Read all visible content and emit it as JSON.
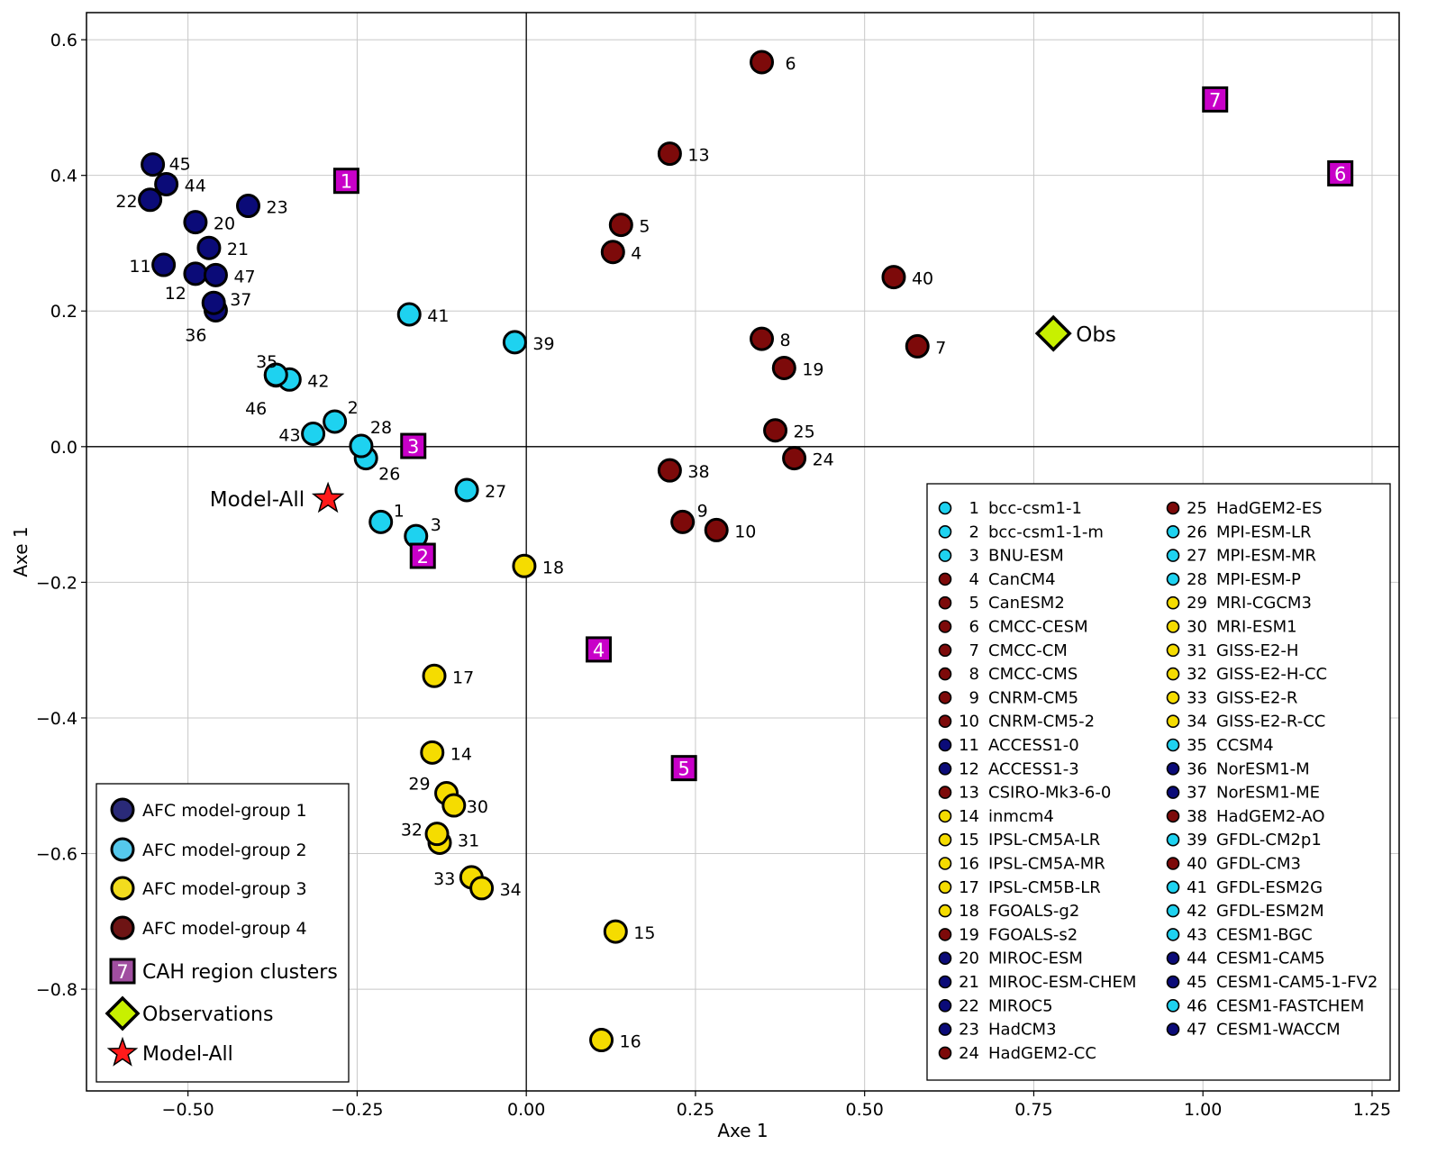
{
  "chart_data": {
    "type": "scatter",
    "xlabel": "Axe 1",
    "ylabel": "Axe 1",
    "xlim": [
      -0.65,
      1.29
    ],
    "ylim": [
      -0.95,
      0.64
    ],
    "xticks": [
      -0.5,
      -0.25,
      0.0,
      0.25,
      0.5,
      0.75,
      1.0,
      1.25
    ],
    "xtick_labels": [
      "−0.50",
      "−0.25",
      "0.00",
      "0.25",
      "0.50",
      "0.75",
      "1.00",
      "1.25"
    ],
    "yticks": [
      0.6,
      0.4,
      0.2,
      0.0,
      -0.2,
      -0.4,
      -0.6,
      -0.8
    ],
    "ytick_labels": [
      "0.6",
      "0.4",
      "0.2",
      "0.0",
      "−0.2",
      "−0.4",
      "−0.6",
      "−0.8"
    ],
    "grid": true,
    "zero_lines": true,
    "group_colors": {
      "1": "#0b0b78",
      "2": "#1ed2f0",
      "3": "#f5dc00",
      "4": "#7d0a0a"
    },
    "legend_group_colors": {
      "1": "#2a2a78",
      "2": "#55c8ec",
      "3": "#f2dc1e",
      "4": "#6e1414"
    },
    "cluster_color": "#c800c8",
    "cluster_legend_color": "#a04ea0",
    "obs_color": "#c8f000",
    "star_color": "#ff1a1a",
    "models": [
      {
        "id": 1,
        "name": "bcc-csm1-1",
        "group": 2,
        "x": -0.215,
        "y": -0.111
      },
      {
        "id": 2,
        "name": "bcc-csm1-1-m",
        "group": 2,
        "x": -0.283,
        "y": 0.037
      },
      {
        "id": 3,
        "name": "BNU-ESM",
        "group": 2,
        "x": -0.163,
        "y": -0.132
      },
      {
        "id": 4,
        "name": "CanCM4",
        "group": 4,
        "x": 0.128,
        "y": 0.287
      },
      {
        "id": 5,
        "name": "CanESM2",
        "group": 4,
        "x": 0.14,
        "y": 0.327
      },
      {
        "id": 6,
        "name": "CMCC-CESM",
        "group": 4,
        "x": 0.348,
        "y": 0.567
      },
      {
        "id": 7,
        "name": "CMCC-CM",
        "group": 4,
        "x": 0.578,
        "y": 0.148
      },
      {
        "id": 8,
        "name": "CMCC-CMS",
        "group": 4,
        "x": 0.348,
        "y": 0.159
      },
      {
        "id": 9,
        "name": "CNRM-CM5",
        "group": 4,
        "x": 0.231,
        "y": -0.111
      },
      {
        "id": 10,
        "name": "CNRM-CM5-2",
        "group": 4,
        "x": 0.281,
        "y": -0.123
      },
      {
        "id": 11,
        "name": "ACCESS1-0",
        "group": 1,
        "x": -0.536,
        "y": 0.268
      },
      {
        "id": 12,
        "name": "ACCESS1-3",
        "group": 1,
        "x": -0.489,
        "y": 0.255
      },
      {
        "id": 13,
        "name": "CSIRO-Mk3-6-0",
        "group": 4,
        "x": 0.212,
        "y": 0.432
      },
      {
        "id": 14,
        "name": "inmcm4",
        "group": 3,
        "x": -0.139,
        "y": -0.451
      },
      {
        "id": 15,
        "name": "IPSL-CM5A-LR",
        "group": 3,
        "x": 0.132,
        "y": -0.715
      },
      {
        "id": 16,
        "name": "IPSL-CM5A-MR",
        "group": 3,
        "x": 0.111,
        "y": -0.875
      },
      {
        "id": 17,
        "name": "IPSL-CM5B-LR",
        "group": 3,
        "x": -0.136,
        "y": -0.338
      },
      {
        "id": 18,
        "name": "FGOALS-g2",
        "group": 3,
        "x": -0.003,
        "y": -0.176
      },
      {
        "id": 19,
        "name": "FGOALS-s2",
        "group": 4,
        "x": 0.381,
        "y": 0.116
      },
      {
        "id": 20,
        "name": "MIROC-ESM",
        "group": 1,
        "x": -0.489,
        "y": 0.331
      },
      {
        "id": 21,
        "name": "MIROC-ESM-CHEM",
        "group": 1,
        "x": -0.469,
        "y": 0.293
      },
      {
        "id": 22,
        "name": "MIROC5",
        "group": 1,
        "x": -0.556,
        "y": 0.364
      },
      {
        "id": 23,
        "name": "HadCM3",
        "group": 1,
        "x": -0.411,
        "y": 0.355
      },
      {
        "id": 24,
        "name": "HadGEM2-CC",
        "group": 4,
        "x": 0.396,
        "y": -0.017
      },
      {
        "id": 25,
        "name": "HadGEM2-ES",
        "group": 4,
        "x": 0.368,
        "y": 0.024
      },
      {
        "id": 26,
        "name": "MPI-ESM-LR",
        "group": 2,
        "x": -0.237,
        "y": -0.017
      },
      {
        "id": 27,
        "name": "MPI-ESM-MR",
        "group": 2,
        "x": -0.088,
        "y": -0.064
      },
      {
        "id": 28,
        "name": "MPI-ESM-P",
        "group": 2,
        "x": -0.244,
        "y": 0.001
      },
      {
        "id": 29,
        "name": "MRI-CGCM3",
        "group": 3,
        "x": -0.118,
        "y": -0.511
      },
      {
        "id": 30,
        "name": "MRI-ESM1",
        "group": 3,
        "x": -0.107,
        "y": -0.529
      },
      {
        "id": 31,
        "name": "GISS-E2-H",
        "group": 3,
        "x": -0.128,
        "y": -0.584
      },
      {
        "id": 32,
        "name": "GISS-E2-H-CC",
        "group": 3,
        "x": -0.132,
        "y": -0.571
      },
      {
        "id": 33,
        "name": "GISS-E2-R",
        "group": 3,
        "x": -0.081,
        "y": -0.635
      },
      {
        "id": 34,
        "name": "GISS-E2-R-CC",
        "group": 3,
        "x": -0.066,
        "y": -0.651
      },
      {
        "id": 35,
        "name": "CCSM4",
        "group": 2,
        "x": -0.37,
        "y": 0.105
      },
      {
        "id": 36,
        "name": "NorESM1-M",
        "group": 1,
        "x": -0.459,
        "y": 0.201
      },
      {
        "id": 37,
        "name": "NorESM1-ME",
        "group": 1,
        "x": -0.462,
        "y": 0.212
      },
      {
        "id": 38,
        "name": "HadGEM2-AO",
        "group": 4,
        "x": 0.212,
        "y": -0.035
      },
      {
        "id": 39,
        "name": "GFDL-CM2p1",
        "group": 2,
        "x": -0.017,
        "y": 0.154
      },
      {
        "id": 40,
        "name": "GFDL-CM3",
        "group": 4,
        "x": 0.543,
        "y": 0.25
      },
      {
        "id": 41,
        "name": "GFDL-ESM2G",
        "group": 2,
        "x": -0.173,
        "y": 0.195
      },
      {
        "id": 42,
        "name": "GFDL-ESM2M",
        "group": 2,
        "x": -0.35,
        "y": 0.099
      },
      {
        "id": 43,
        "name": "CESM1-BGC",
        "group": 2,
        "x": -0.315,
        "y": 0.019
      },
      {
        "id": 44,
        "name": "CESM1-CAM5",
        "group": 1,
        "x": -0.532,
        "y": 0.387
      },
      {
        "id": 45,
        "name": "CESM1-CAM5-1-FV2",
        "group": 1,
        "x": -0.552,
        "y": 0.416
      },
      {
        "id": 46,
        "name": "CESM1-FASTCHEM",
        "group": 2,
        "x": -0.37,
        "y": 0.106
      },
      {
        "id": 47,
        "name": "CESM1-WACCM",
        "group": 1,
        "x": -0.459,
        "y": 0.253
      }
    ],
    "clusters": [
      {
        "label": "1",
        "x": -0.266,
        "y": 0.392
      },
      {
        "label": "2",
        "x": -0.153,
        "y": -0.161
      },
      {
        "label": "3",
        "x": -0.167,
        "y": 0.001
      },
      {
        "label": "4",
        "x": 0.107,
        "y": -0.299
      },
      {
        "label": "5",
        "x": 0.233,
        "y": -0.474
      },
      {
        "label": "6",
        "x": 1.203,
        "y": 0.403
      },
      {
        "label": "7",
        "x": 1.018,
        "y": 0.512
      }
    ],
    "observations": {
      "label": "Obs",
      "x": 0.779,
      "y": 0.167
    },
    "model_all": {
      "label": "Model-All",
      "x": -0.293,
      "y": -0.077
    },
    "legend_main": [
      {
        "kind": "circle",
        "group": 1,
        "label": "AFC model-group 1"
      },
      {
        "kind": "circle",
        "group": 2,
        "label": "AFC model-group 2"
      },
      {
        "kind": "circle",
        "group": 3,
        "label": "AFC model-group 3"
      },
      {
        "kind": "circle",
        "group": 4,
        "label": "AFC model-group 4"
      },
      {
        "kind": "square",
        "symbol": "7",
        "label": "CAH region clusters"
      },
      {
        "kind": "diamond",
        "label": "Observations"
      },
      {
        "kind": "star",
        "label": "Model-All"
      }
    ],
    "legend_models_placement": "bottom-right",
    "legend_main_placement": "bottom-left"
  }
}
